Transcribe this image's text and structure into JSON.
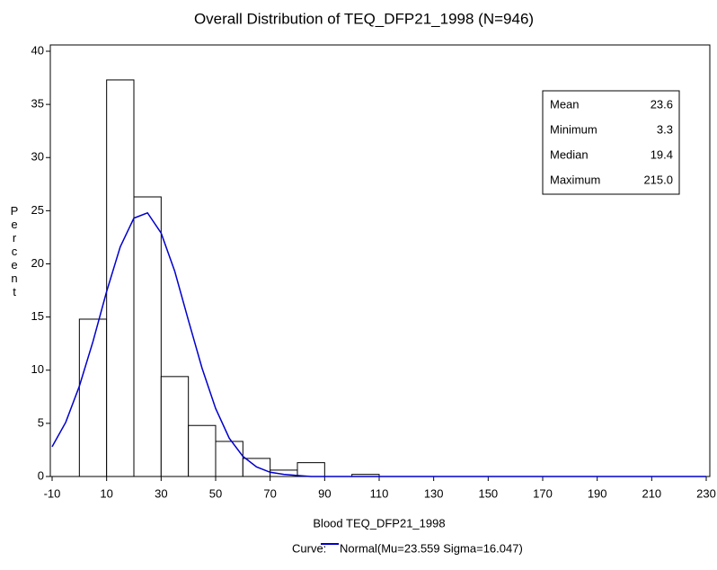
{
  "chart_data": {
    "type": "histogram",
    "title": "Overall Distribution of TEQ_DFP21_1998 (N=946)",
    "x_label": "Blood TEQ_DFP21_1998",
    "y_label": "Percent",
    "bins": [
      0,
      10,
      20,
      30,
      40,
      50,
      60,
      70,
      80,
      90,
      100,
      110
    ],
    "values": [
      14.8,
      37.3,
      26.3,
      9.4,
      4.8,
      3.3,
      1.7,
      0.6,
      1.3,
      0,
      0.2
    ],
    "color": "#ffffff",
    "edge_color": "#000000",
    "xlim": [
      -10,
      230
    ],
    "xticks": [
      -10,
      10,
      30,
      50,
      70,
      90,
      110,
      130,
      150,
      170,
      190,
      210,
      230
    ],
    "ylim": [
      0,
      40
    ],
    "yticks": [
      0,
      5,
      10,
      15,
      20,
      25,
      30,
      35,
      40
    ],
    "curve": {
      "legend_title": "Curve:",
      "name": "Normal(Mu=23.559 Sigma=16.047)",
      "color": "#0000cc",
      "x": [
        -10,
        -5,
        0,
        5,
        10,
        15,
        20,
        25,
        30,
        35,
        40,
        45,
        50,
        55,
        60,
        65,
        70,
        75,
        80,
        85,
        90,
        230
      ],
      "values": [
        2.8,
        5.1,
        8.5,
        12.7,
        17.4,
        21.6,
        24.3,
        24.8,
        22.9,
        19.3,
        14.7,
        10.2,
        6.4,
        3.6,
        1.9,
        0.9,
        0.4,
        0.2,
        0.1,
        0,
        0,
        0
      ]
    },
    "stats": [
      {
        "label": "Mean",
        "value": "23.6"
      },
      {
        "label": "Minimum",
        "value": "3.3"
      },
      {
        "label": "Median",
        "value": "19.4"
      },
      {
        "label": "Maximum",
        "value": "215.0"
      }
    ]
  }
}
